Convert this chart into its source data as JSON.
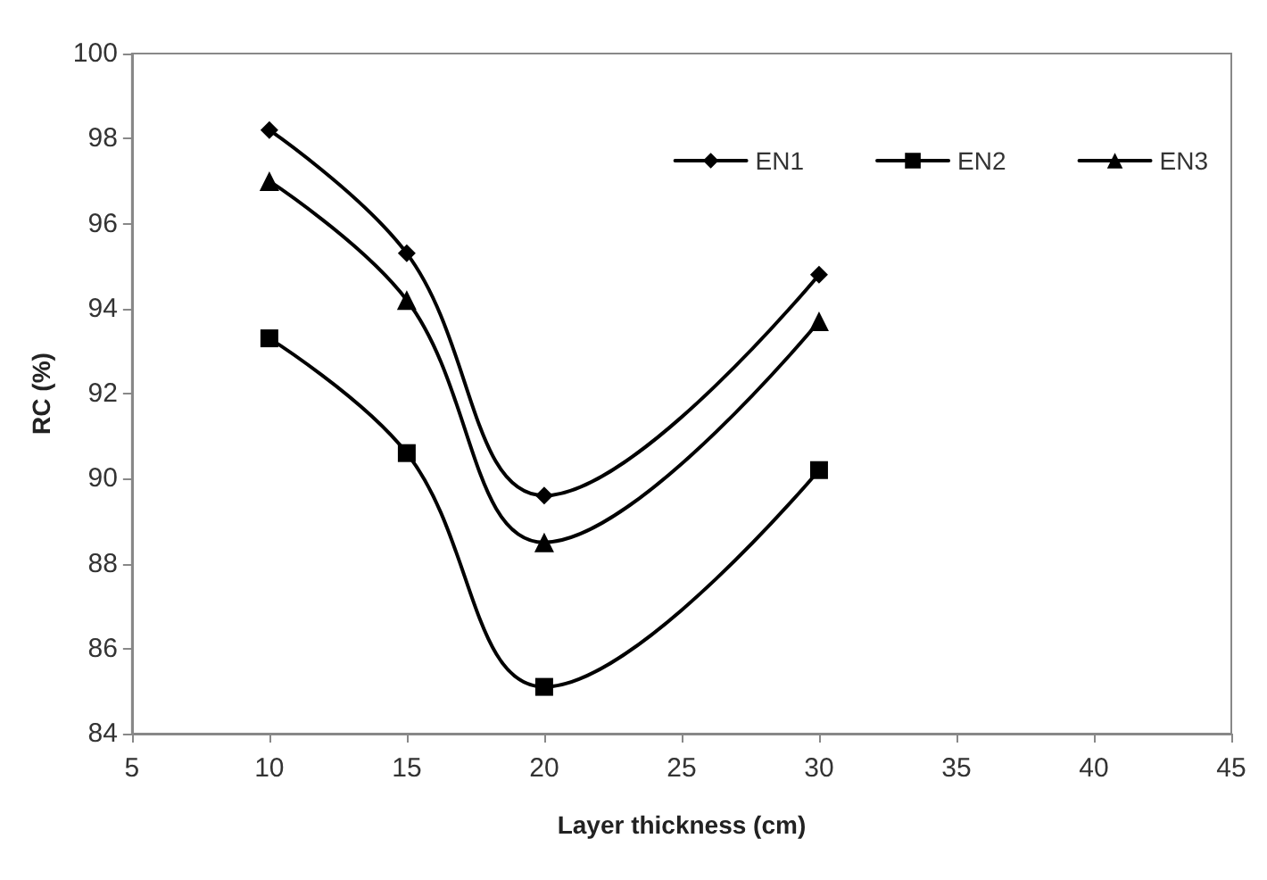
{
  "chart_data": {
    "type": "line",
    "xlabel": "Layer thickness (cm)",
    "ylabel": "RC (%)",
    "x": [
      10,
      15,
      20,
      30
    ],
    "series": [
      {
        "name": "EN1",
        "color": "#000000",
        "marker": "diamond",
        "values": [
          98.2,
          95.3,
          89.6,
          94.8
        ]
      },
      {
        "name": "EN2",
        "color": "#000000",
        "marker": "square",
        "values": [
          93.3,
          90.6,
          85.1,
          90.2
        ]
      },
      {
        "name": "EN3",
        "color": "#000000",
        "marker": "triangle",
        "values": [
          97.0,
          94.2,
          88.5,
          93.7
        ]
      }
    ],
    "xlim": [
      5,
      45
    ],
    "xticks": [
      5,
      10,
      15,
      20,
      25,
      30,
      35,
      40,
      45
    ],
    "ylim": [
      84,
      100
    ],
    "yticks": [
      84,
      86,
      88,
      90,
      92,
      94,
      96,
      98,
      100
    ],
    "grid": false,
    "legend": "top right",
    "line_style": "solid"
  }
}
